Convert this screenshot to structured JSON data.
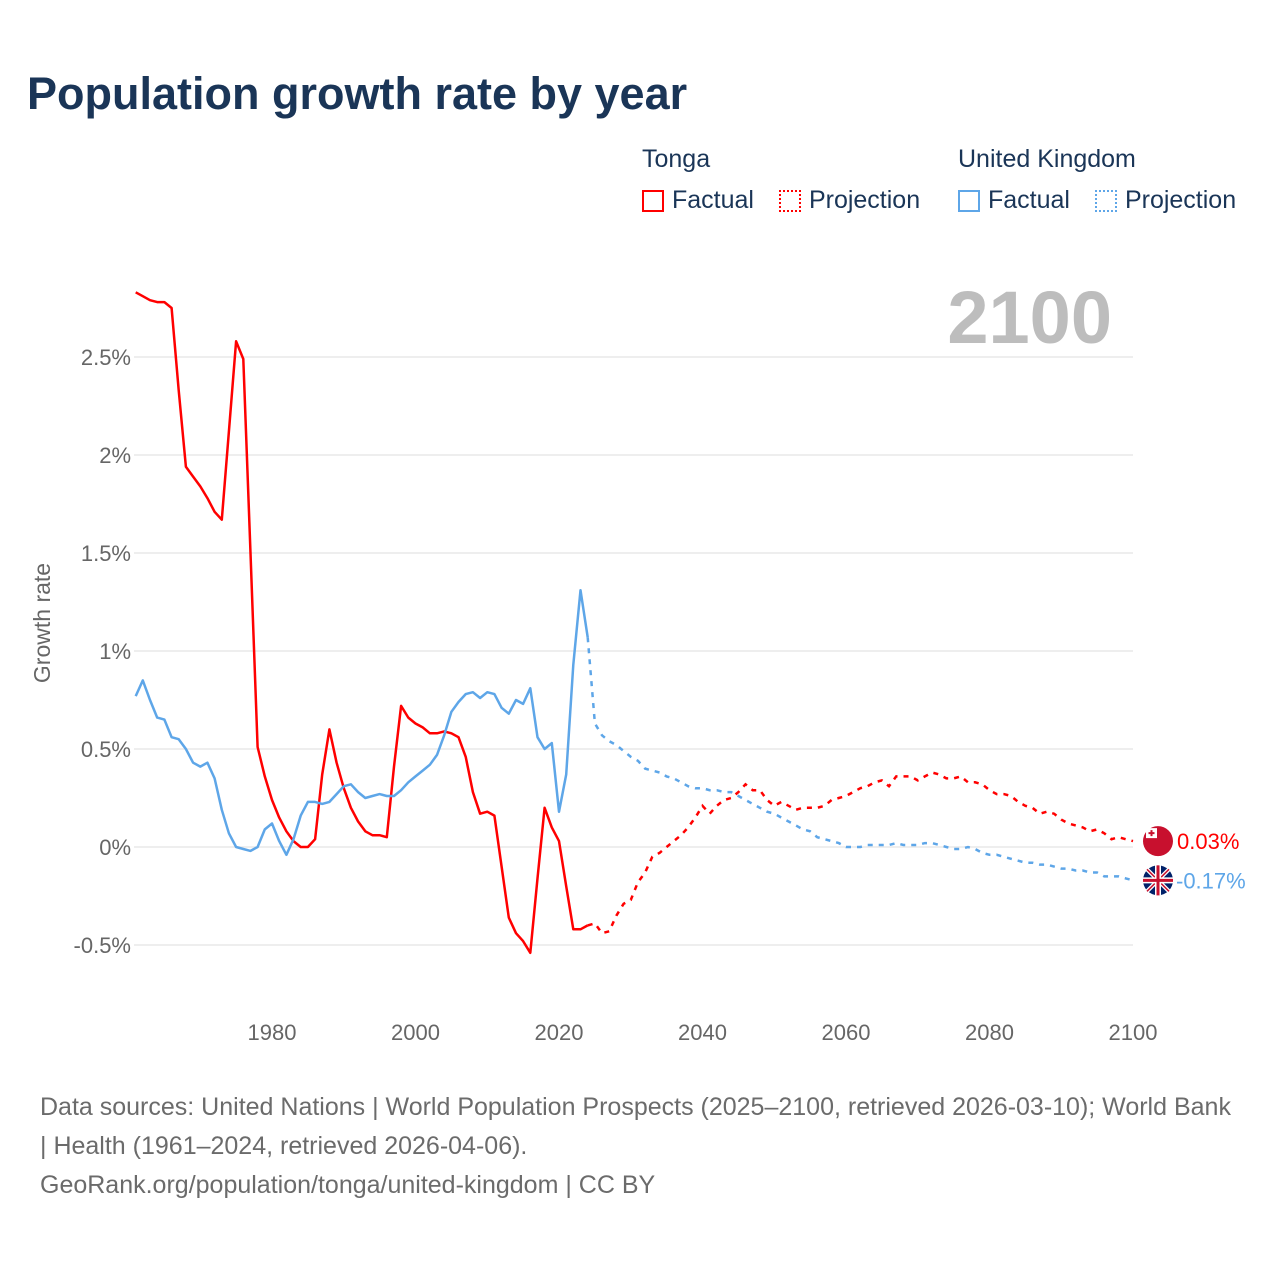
{
  "title": "Population growth rate by year",
  "legend": {
    "groups": [
      {
        "name": "Tonga",
        "factual": "Factual",
        "projection": "Projection",
        "color": "#ff0000"
      },
      {
        "name": "United Kingdom",
        "factual": "Factual",
        "projection": "Projection",
        "color": "#5ea6e8"
      }
    ]
  },
  "year_label": "2100",
  "footer": {
    "sources": "Data sources: United Nations | World Population Prospects (2025–2100, retrieved 2026-03-10); World Bank | Health (1961–2024, retrieved 2026-04-06).",
    "link": "GeoRank.org/population/tonga/united-kingdom | CC BY"
  },
  "chart_data": {
    "type": "line",
    "title": "Population growth rate by year",
    "xlabel": "",
    "ylabel": "Growth rate",
    "xlim": [
      1961,
      2100
    ],
    "ylim": [
      -0.65,
      2.9
    ],
    "xticks": [
      1980,
      2000,
      2020,
      2040,
      2060,
      2080,
      2100
    ],
    "xtick_labels": [
      "1980",
      "2000",
      "2020",
      "2040",
      "2060",
      "2080",
      "2100"
    ],
    "yticks": [
      -0.5,
      0,
      0.5,
      1,
      1.5,
      2,
      2.5
    ],
    "ytick_labels": [
      "-0.5%",
      "0%",
      "0.5%",
      "1%",
      "1.5%",
      "2%",
      "2.5%"
    ],
    "grid": true,
    "legend_position": "top-right",
    "series": [
      {
        "name": "Tonga",
        "color": "#ff0000",
        "end_label": "0.03%",
        "factual": {
          "start_year": 1961,
          "values": [
            2.83,
            2.81,
            2.79,
            2.78,
            2.78,
            2.75,
            2.33,
            1.94,
            1.89,
            1.84,
            1.78,
            1.71,
            1.67,
            2.12,
            2.58,
            2.49,
            1.5,
            0.51,
            0.36,
            0.24,
            0.15,
            0.08,
            0.03,
            0.0,
            0.0,
            0.04,
            0.37,
            0.6,
            0.43,
            0.3,
            0.2,
            0.13,
            0.08,
            0.06,
            0.06,
            0.05,
            0.41,
            0.72,
            0.66,
            0.63,
            0.61,
            0.58,
            0.58,
            0.59,
            0.58,
            0.56,
            0.46,
            0.28,
            0.17,
            0.18,
            0.16,
            -0.1,
            -0.36,
            -0.44,
            -0.48,
            -0.54,
            -0.16,
            0.2,
            0.1,
            0.03,
            -0.2,
            -0.42,
            -0.42,
            -0.4
          ]
        },
        "projection": {
          "start_year": 2024,
          "values": [
            -0.4,
            -0.39,
            -0.44,
            -0.43,
            -0.35,
            -0.29,
            -0.27,
            -0.18,
            -0.13,
            -0.05,
            -0.03,
            0.0,
            0.03,
            0.06,
            0.1,
            0.15,
            0.21,
            0.17,
            0.21,
            0.24,
            0.25,
            0.28,
            0.32,
            0.29,
            0.29,
            0.24,
            0.21,
            0.23,
            0.21,
            0.19,
            0.2,
            0.2,
            0.2,
            0.21,
            0.24,
            0.25,
            0.26,
            0.28,
            0.3,
            0.31,
            0.33,
            0.34,
            0.31,
            0.36,
            0.36,
            0.36,
            0.34,
            0.36,
            0.38,
            0.37,
            0.35,
            0.35,
            0.36,
            0.33,
            0.33,
            0.32,
            0.29,
            0.27,
            0.27,
            0.26,
            0.23,
            0.21,
            0.2,
            0.17,
            0.18,
            0.17,
            0.14,
            0.12,
            0.11,
            0.1,
            0.08,
            0.09,
            0.07,
            0.04,
            0.05,
            0.04,
            0.03
          ]
        }
      },
      {
        "name": "United Kingdom",
        "color": "#5ea6e8",
        "end_label": "-0.17%",
        "factual": {
          "start_year": 1961,
          "values": [
            0.77,
            0.85,
            0.75,
            0.66,
            0.65,
            0.56,
            0.55,
            0.5,
            0.43,
            0.41,
            0.43,
            0.35,
            0.19,
            0.07,
            0.0,
            -0.01,
            -0.02,
            0.0,
            0.09,
            0.12,
            0.03,
            -0.04,
            0.04,
            0.16,
            0.23,
            0.23,
            0.22,
            0.23,
            0.27,
            0.31,
            0.32,
            0.28,
            0.25,
            0.26,
            0.27,
            0.26,
            0.26,
            0.29,
            0.33,
            0.36,
            0.39,
            0.42,
            0.47,
            0.57,
            0.69,
            0.74,
            0.78,
            0.79,
            0.76,
            0.79,
            0.78,
            0.71,
            0.68,
            0.75,
            0.73,
            0.81,
            0.56,
            0.5,
            0.53,
            0.18,
            0.37,
            0.93,
            1.31,
            1.07
          ]
        },
        "projection": {
          "start_year": 2024,
          "values": [
            1.07,
            0.63,
            0.57,
            0.54,
            0.52,
            0.49,
            0.46,
            0.44,
            0.4,
            0.39,
            0.38,
            0.36,
            0.35,
            0.33,
            0.31,
            0.3,
            0.3,
            0.29,
            0.29,
            0.28,
            0.28,
            0.26,
            0.24,
            0.22,
            0.2,
            0.18,
            0.17,
            0.15,
            0.13,
            0.11,
            0.09,
            0.08,
            0.05,
            0.04,
            0.03,
            0.02,
            0.0,
            0.0,
            0.0,
            0.01,
            0.01,
            0.01,
            0.01,
            0.02,
            0.01,
            0.01,
            0.01,
            0.02,
            0.02,
            0.01,
            0.0,
            -0.01,
            -0.01,
            0.0,
            -0.01,
            -0.03,
            -0.04,
            -0.04,
            -0.05,
            -0.06,
            -0.07,
            -0.08,
            -0.08,
            -0.09,
            -0.09,
            -0.1,
            -0.11,
            -0.11,
            -0.12,
            -0.12,
            -0.13,
            -0.13,
            -0.15,
            -0.15,
            -0.15,
            -0.16,
            -0.17
          ]
        }
      }
    ]
  }
}
